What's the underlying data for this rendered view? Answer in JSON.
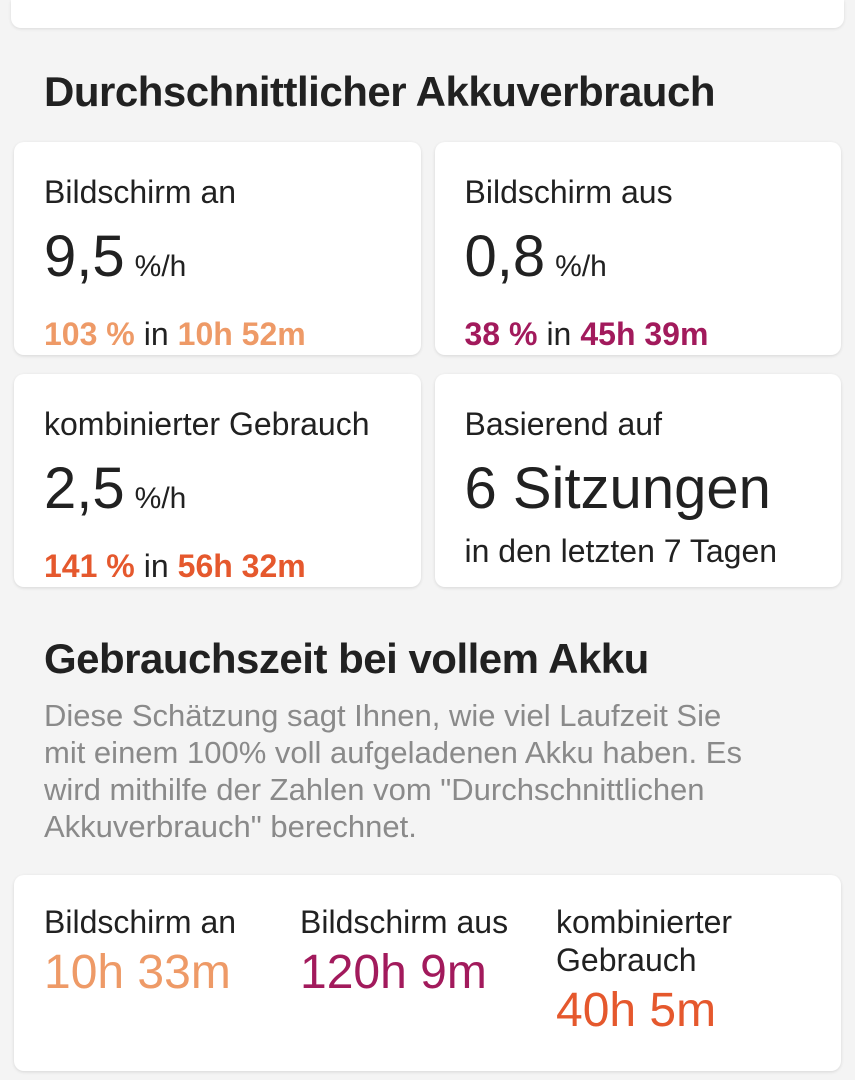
{
  "colors": {
    "screen_on": "#ee9a67",
    "screen_off": "#a21a5c",
    "combined": "#e5582d",
    "dark_text": "#212121",
    "muted_text": "#8a8a8a",
    "background": "#f4f4f4",
    "card": "#ffffff"
  },
  "section_avg": {
    "title": "Durchschnittlicher Akkuverbrauch",
    "cards": [
      {
        "label": "Bildschirm an",
        "rate": "9,5",
        "rate_unit": "%/h",
        "pct": "103 %",
        "conn": "in",
        "duration": "10h 52m"
      },
      {
        "label": "Bildschirm aus",
        "rate": "0,8",
        "rate_unit": "%/h",
        "pct": "38 %",
        "conn": "in",
        "duration": "45h 39m"
      },
      {
        "label": "kombinierter Gebrauch",
        "rate": "2,5",
        "rate_unit": "%/h",
        "pct": "141 %",
        "conn": "in",
        "duration": "56h 32m"
      },
      {
        "label": "Basierend auf",
        "big": "6 Sitzungen",
        "sub": "in den letzten 7 Tagen"
      }
    ]
  },
  "section_usage": {
    "title": "Gebrauchszeit bei vollem Akku",
    "description_lines": [
      "Diese Schätzung sagt Ihnen, wie viel Laufzeit Sie",
      "mit einem 100% voll aufgeladenen Akku haben. Es",
      "wird mithilfe der Zahlen vom \"Durchschnittlichen",
      "Akkuverbrauch\" berechnet."
    ],
    "columns": [
      {
        "label": "Bildschirm an",
        "value": "10h 33m"
      },
      {
        "label": "Bildschirm aus",
        "value": "120h 9m"
      },
      {
        "label": "kombinierter Gebrauch",
        "value": "40h 5m"
      }
    ]
  }
}
